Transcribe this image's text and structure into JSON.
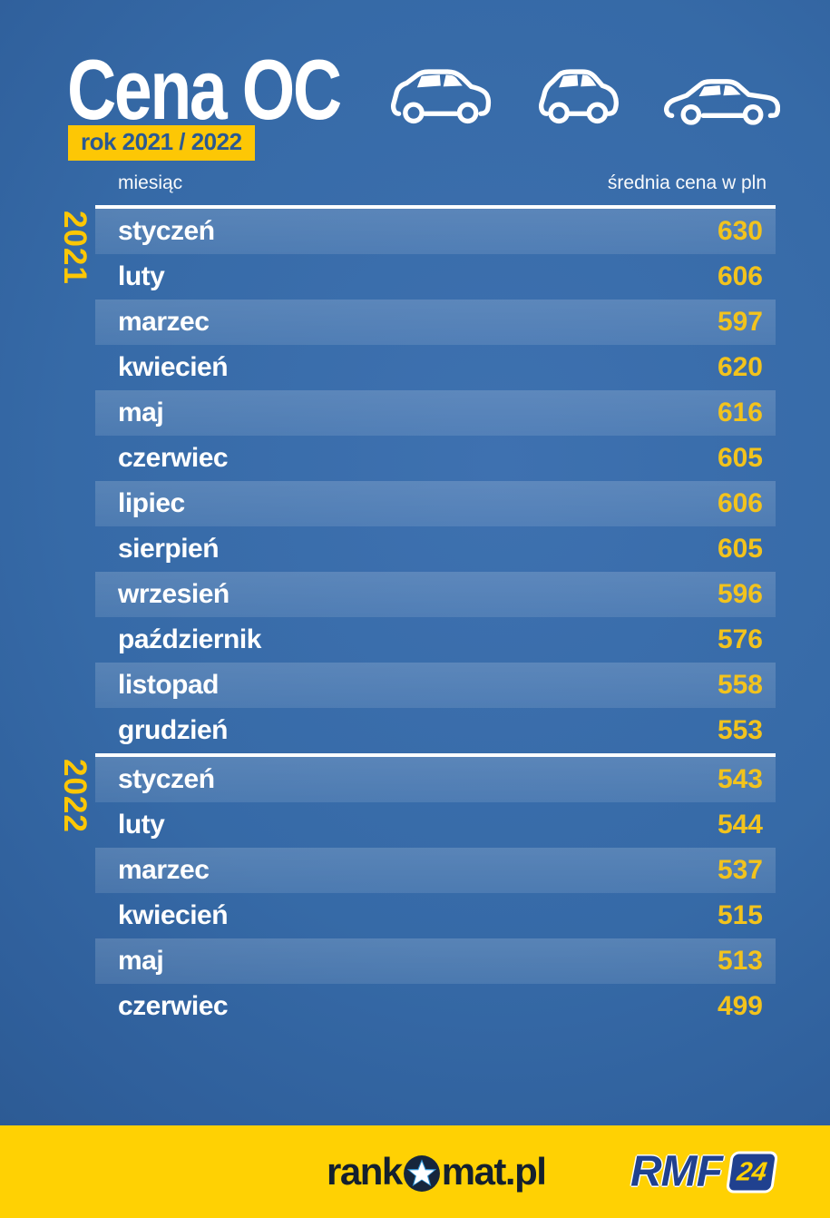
{
  "chart_data": {
    "type": "table",
    "title": "Cena OC",
    "subtitle": "rok 2021 / 2022",
    "columns": [
      "miesiąc",
      "średnia cena w pln"
    ],
    "series": [
      {
        "name": "2021",
        "categories": [
          "styczeń",
          "luty",
          "marzec",
          "kwiecień",
          "maj",
          "czerwiec",
          "lipiec",
          "sierpień",
          "wrzesień",
          "październik",
          "listopad",
          "grudzień"
        ],
        "values": [
          630,
          606,
          597,
          620,
          616,
          605,
          606,
          605,
          596,
          576,
          558,
          553
        ]
      },
      {
        "name": "2022",
        "categories": [
          "styczeń",
          "luty",
          "marzec",
          "kwiecień",
          "maj",
          "czerwiec"
        ],
        "values": [
          543,
          544,
          537,
          515,
          513,
          499
        ]
      }
    ],
    "layout": {
      "striped_rows": "odd",
      "value_alignment": "right",
      "section_divider": "white-line"
    }
  },
  "icons": {
    "cars": [
      "hatchback-car",
      "city-car",
      "sedan-car"
    ],
    "rankomat_star": "star-in-circle"
  },
  "footer": {
    "rankomat_prefix": "rank",
    "rankomat_suffix": "mat.pl",
    "rmf_text": "RMF",
    "rmf_badge": "24"
  },
  "colors": {
    "background_blue": "#35669f",
    "accent_yellow": "#fdc705",
    "price_yellow": "#f2c31d",
    "footer_yellow": "#ffd103",
    "rmf_navy": "#20418f",
    "text_white": "#ffffff"
  }
}
